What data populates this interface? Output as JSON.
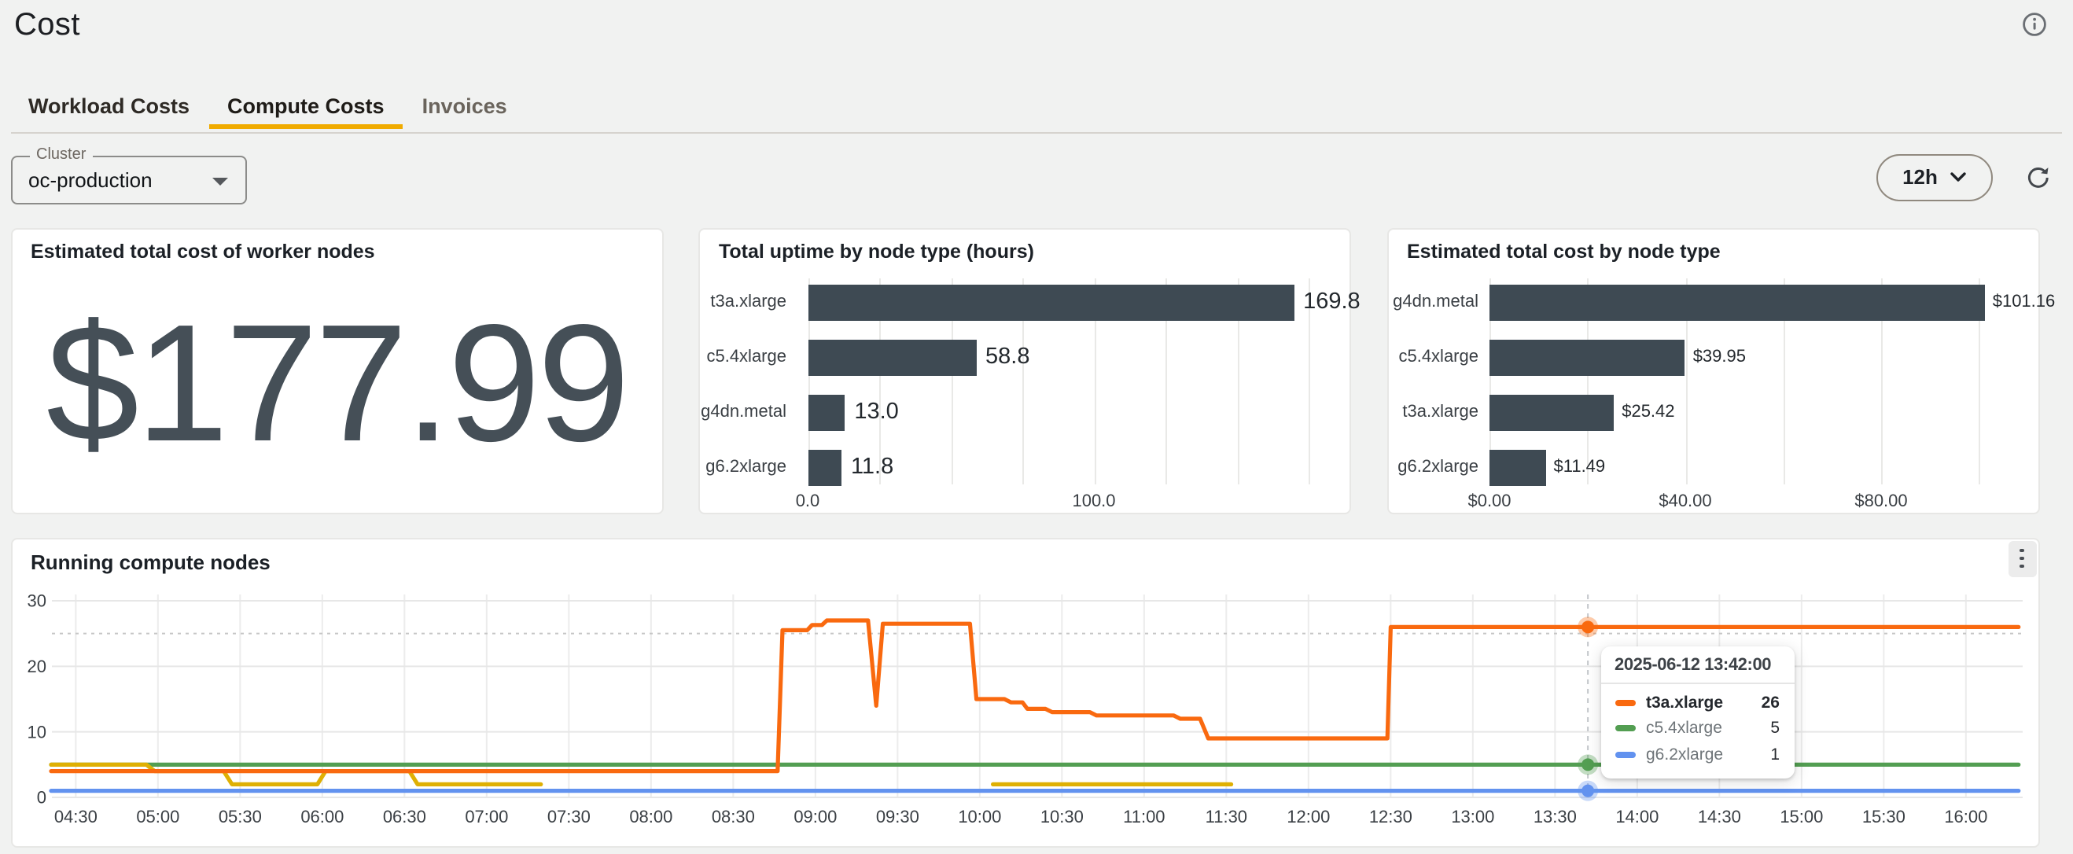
{
  "page": {
    "title": "Cost"
  },
  "header": {
    "info_icon": "info-circle-icon"
  },
  "tabs": [
    {
      "label": "Workload Costs",
      "active": false
    },
    {
      "label": "Compute Costs",
      "active": true
    },
    {
      "label": "Invoices",
      "active": false
    }
  ],
  "filters": {
    "cluster_label": "Cluster",
    "cluster_value": "oc-production",
    "time_range": "12h"
  },
  "colors": {
    "accent": "#f0ab00",
    "bar": "#3e4a53",
    "metric": "#454f57",
    "series": {
      "t3a.xlarge": "#f9690f",
      "c5.4xlarge": "#539e52",
      "g4dn.metal": "#dfb004",
      "g6.2xlarge": "#6292ef"
    }
  },
  "icons": [
    "info-circle-icon",
    "chevron-down-icon",
    "refresh-icon",
    "select-caret-icon",
    "kebab-menu-icon"
  ],
  "chart_data": [
    {
      "id": "total_cost",
      "type": "number",
      "title": "Estimated total cost of worker nodes",
      "value": "$177.99"
    },
    {
      "id": "uptime_by_node_type",
      "type": "bar",
      "orientation": "horizontal",
      "title": "Total uptime by node type (hours)",
      "categories": [
        "t3a.xlarge",
        "c5.4xlarge",
        "g4dn.metal",
        "g6.2xlarge"
      ],
      "values": [
        169.8,
        58.8,
        13.0,
        11.8
      ],
      "value_labels": [
        "169.8",
        "58.8",
        "13.0",
        "11.8"
      ],
      "xlim": [
        0,
        183
      ],
      "grid_step": 25,
      "grid": true,
      "ticks": [
        {
          "value": 0,
          "label": "0.0"
        },
        {
          "value": 100,
          "label": "100.0"
        }
      ],
      "bar_color": "#3e4a53"
    },
    {
      "id": "cost_by_node_type",
      "type": "bar",
      "orientation": "horizontal",
      "title": "Estimated total cost by node type",
      "categories": [
        "g4dn.metal",
        "c5.4xlarge",
        "t3a.xlarge",
        "g6.2xlarge"
      ],
      "values": [
        101.16,
        39.95,
        25.42,
        11.49
      ],
      "value_labels": [
        "$101.16",
        "$39.95",
        "$25.42",
        "$11.49"
      ],
      "xlim": [
        0,
        109
      ],
      "grid_step": 20,
      "grid": true,
      "ticks": [
        {
          "value": 0,
          "label": "$0.00"
        },
        {
          "value": 40,
          "label": "$40.00"
        },
        {
          "value": 80,
          "label": "$80.00"
        }
      ],
      "bar_color": "#3e4a53"
    },
    {
      "id": "running_compute_nodes",
      "type": "line",
      "title": "Running compute nodes",
      "ylim": [
        0,
        30
      ],
      "y_ticks": [
        0,
        10,
        20,
        30
      ],
      "threshold": 25,
      "x_domain_hours": [
        4.35,
        16.35
      ],
      "x_tick_labels": [
        "04:30",
        "05:00",
        "05:30",
        "06:00",
        "06:30",
        "07:00",
        "07:30",
        "08:00",
        "08:30",
        "09:00",
        "09:30",
        "10:00",
        "10:30",
        "11:00",
        "11:30",
        "12:00",
        "12:30",
        "13:00",
        "13:30",
        "14:00",
        "14:30",
        "15:00",
        "15:30",
        "16:00"
      ],
      "grid": true,
      "series": [
        {
          "name": "c5.4xlarge",
          "color": "#539e52",
          "segments": [
            [
              [
                4.35,
                5
              ],
              [
                16.32,
                5
              ]
            ]
          ]
        },
        {
          "name": "g6.2xlarge",
          "color": "#6292ef",
          "segments": [
            [
              [
                4.35,
                1
              ],
              [
                16.32,
                1
              ]
            ]
          ]
        },
        {
          "name": "g4dn.metal",
          "color": "#dfb004",
          "segments": [
            [
              [
                4.35,
                5
              ],
              [
                4.93,
                5
              ],
              [
                4.98,
                4
              ],
              [
                5.4,
                4
              ],
              [
                5.45,
                2
              ],
              [
                5.97,
                2
              ],
              [
                6.02,
                4
              ],
              [
                6.53,
                4
              ],
              [
                6.58,
                2
              ],
              [
                7.33,
                2
              ]
            ],
            [
              [
                10.08,
                2
              ],
              [
                11.53,
                2
              ]
            ]
          ]
        },
        {
          "name": "t3a.xlarge",
          "color": "#f9690f",
          "segments": [
            [
              [
                4.35,
                4
              ],
              [
                8.77,
                4
              ],
              [
                8.8,
                25.5
              ],
              [
                8.95,
                25.5
              ],
              [
                8.98,
                26.3
              ],
              [
                9.04,
                26.3
              ],
              [
                9.07,
                27
              ],
              [
                9.32,
                27
              ],
              [
                9.37,
                14
              ],
              [
                9.41,
                26.5
              ],
              [
                9.94,
                26.5
              ],
              [
                9.98,
                15
              ],
              [
                10.15,
                15
              ],
              [
                10.19,
                14.5
              ],
              [
                10.26,
                14.5
              ],
              [
                10.29,
                13.5
              ],
              [
                10.4,
                13.5
              ],
              [
                10.44,
                13
              ],
              [
                10.67,
                13
              ],
              [
                10.71,
                12.5
              ],
              [
                11.18,
                12.5
              ],
              [
                11.22,
                12
              ],
              [
                11.34,
                12
              ],
              [
                11.39,
                9
              ],
              [
                12.48,
                9
              ],
              [
                12.5,
                26
              ],
              [
                16.32,
                26
              ]
            ]
          ]
        }
      ],
      "tooltip": {
        "time_hours": 13.7,
        "header": "2025-06-12 13:42:00",
        "rows": [
          {
            "name": "t3a.xlarge",
            "value": "26",
            "color": "#f9690f",
            "highlight": true
          },
          {
            "name": "c5.4xlarge",
            "value": "5",
            "color": "#539e52",
            "highlight": false
          },
          {
            "name": "g6.2xlarge",
            "value": "1",
            "color": "#6292ef",
            "highlight": false
          }
        ]
      }
    }
  ]
}
